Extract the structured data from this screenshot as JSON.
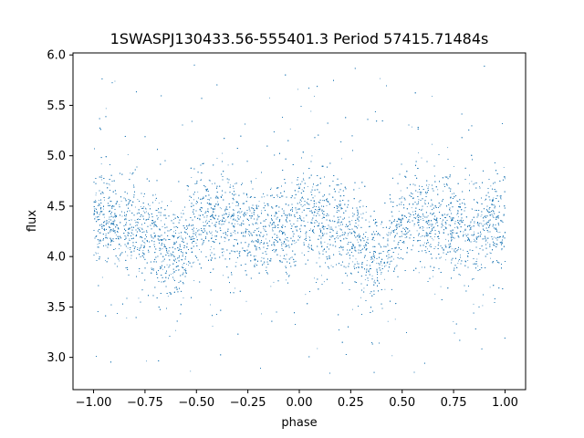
{
  "chart_data": {
    "type": "scatter",
    "title": "1SWASPJ130433.56-555401.3 Period 57415.71484s",
    "xlabel": "phase",
    "ylabel": "flux",
    "xlim": [
      -1.1,
      1.1
    ],
    "ylim": [
      2.68,
      6.02
    ],
    "xticks": [
      -1.0,
      -0.75,
      -0.5,
      -0.25,
      0.0,
      0.25,
      0.5,
      0.75,
      1.0
    ],
    "xtick_labels": [
      "−1.00",
      "−0.75",
      "−0.50",
      "−0.25",
      "0.00",
      "0.25",
      "0.50",
      "0.75",
      "1.00"
    ],
    "yticks": [
      3.0,
      3.5,
      4.0,
      4.5,
      5.0,
      5.5,
      6.0
    ],
    "ytick_labels": [
      "3.0",
      "3.5",
      "4.0",
      "4.5",
      "5.0",
      "5.5",
      "6.0"
    ],
    "grid": false,
    "marker_color": "#1f77b4",
    "series": [
      {
        "phase_range": [
          -1.0,
          1.0
        ],
        "flux_profile_phase": [
          0.0,
          0.1,
          0.2,
          0.3,
          0.35,
          0.4,
          0.45,
          0.5,
          0.55,
          0.6,
          0.7,
          0.8,
          0.85,
          0.9,
          0.95,
          1.0
        ],
        "flux_profile_median": [
          4.35,
          4.37,
          4.28,
          4.18,
          4.05,
          4.0,
          4.15,
          4.35,
          4.4,
          4.38,
          4.35,
          4.25,
          4.22,
          4.3,
          4.33,
          4.35
        ],
        "flux_scatter": 0.22,
        "outlier_range": [
          2.8,
          5.9
        ],
        "point_count": 16000
      }
    ]
  }
}
